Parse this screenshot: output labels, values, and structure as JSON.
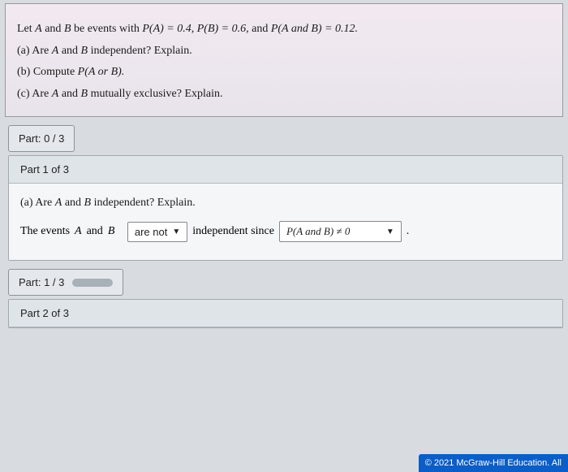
{
  "question": {
    "intro_prefix": "Let ",
    "intro_A": "A",
    "intro_and1": " and ",
    "intro_B": "B",
    "intro_mid": " be events with ",
    "PA_expr": "P(A) = 0.4,",
    "PB_expr": "  P(B) = 0.6,",
    "and_text": "  and ",
    "PAB_expr": "P(A  and  B) = 0.12.",
    "a_prefix": "(a) Are ",
    "a_A": "A",
    "a_and": " and ",
    "a_B": "B",
    "a_suffix": " independent? Explain.",
    "b_prefix": "(b) Compute ",
    "b_expr": "P(A  or  B).",
    "c_prefix": "(c) Are ",
    "c_A": "A",
    "c_and": " and ",
    "c_B": "B",
    "c_suffix": " mutually exclusive? Explain."
  },
  "progress": {
    "part0_label": "Part: 0 / 3",
    "part1_label": "Part: 1 / 3",
    "part1_percent": 33
  },
  "part1": {
    "header": "Part 1 of 3",
    "q_prefix": "(a) Are ",
    "q_A": "A",
    "q_and": " and ",
    "q_B": "B",
    "q_suffix": " independent? Explain.",
    "ans_prefix": "The events ",
    "ans_A": "A",
    "ans_and": " and ",
    "ans_B": "B",
    "dropdown1": "are not",
    "mid_text": " independent since ",
    "dropdown2": "P(A  and  B) ≠ 0"
  },
  "part2": {
    "header": "Part 2 of 3"
  },
  "footer": "© 2021 McGraw-Hill Education. All"
}
